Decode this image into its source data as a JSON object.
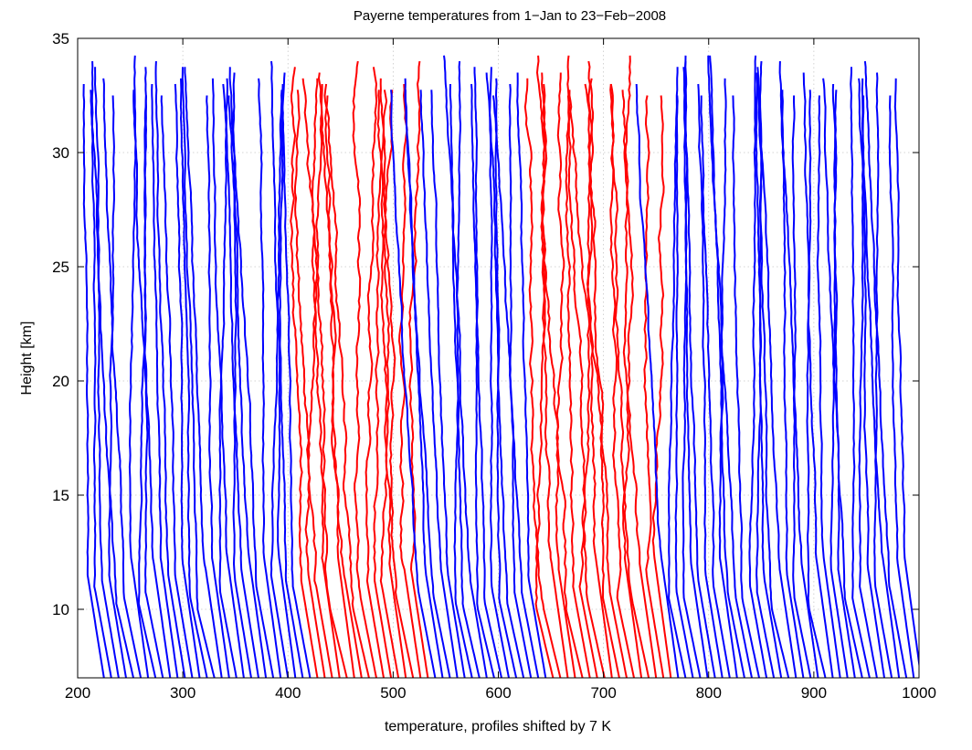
{
  "chart_data": {
    "type": "line",
    "title": "Payerne temperatures from 1−Jan to 23−Feb−2008",
    "xlabel": "temperature, profiles shifted by 7 K",
    "ylabel": "Height [km]",
    "xlim": [
      200,
      1000
    ],
    "ylim": [
      7,
      35
    ],
    "xticks": [
      "200",
      "300",
      "400",
      "500",
      "600",
      "700",
      "800",
      "900",
      "1000"
    ],
    "yticks": [
      "10",
      "15",
      "20",
      "25",
      "30",
      "35"
    ],
    "grid": true,
    "profile_shift_K": 7,
    "profile_count": 112,
    "profile_height_range_km": [
      7,
      34
    ],
    "series_colors": {
      "normal": "#0000ff",
      "highlighted": "#ff0000"
    },
    "highlighted_profiles": [
      {
        "name": "",
        "color": "#ff0000",
        "start_index": 29,
        "end_index": 44
      },
      {
        "name": "",
        "color": "#ff0000",
        "start_index": 61,
        "end_index": 77
      }
    ],
    "profile_model": {
      "x_at_7km_of_first_profile": 225,
      "tropopause_height_km": [
        10,
        12.5
      ],
      "temperature_at_tropopause_offset_K": -16,
      "upper_lapse_K_per_km": -0.4
    }
  }
}
